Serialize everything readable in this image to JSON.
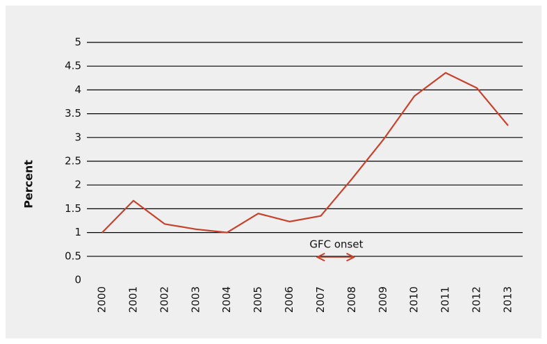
{
  "chart_data": {
    "type": "line",
    "y_label": "Percent",
    "categories": [
      "2000",
      "2001",
      "2002",
      "2003",
      "2004",
      "2005",
      "2006",
      "2007",
      "2008",
      "2009",
      "2010",
      "2011",
      "2012",
      "2013"
    ],
    "series": [
      {
        "name": "Percent",
        "color": "#c8412a",
        "values": [
          1.0,
          1.67,
          1.18,
          1.07,
          1.0,
          1.4,
          1.23,
          1.35,
          2.13,
          2.95,
          3.87,
          4.36,
          4.04,
          3.25
        ]
      }
    ],
    "ylim": [
      0,
      5
    ],
    "yticks": [
      0,
      0.5,
      1,
      1.5,
      2,
      2.5,
      3,
      3.5,
      4,
      4.5,
      5
    ],
    "grid": true,
    "annotation": "GFC onset"
  }
}
